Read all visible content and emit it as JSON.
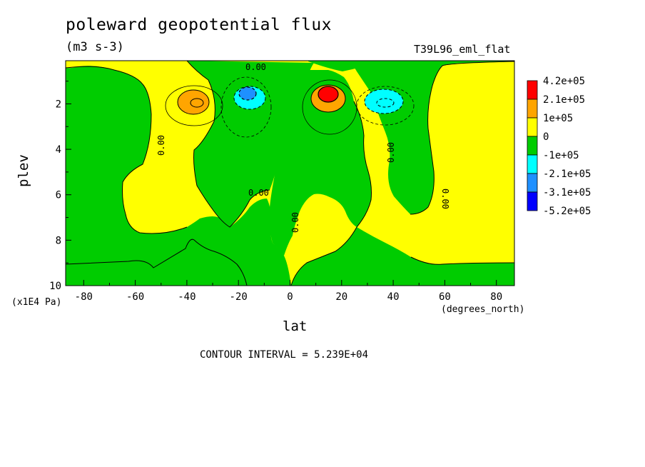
{
  "header": {
    "title": "poleward geopotential flux",
    "units": "(m3 s-3)",
    "run_name": "T39L96_eml_flat"
  },
  "footer": {
    "contour_interval": "CONTOUR INTERVAL = 5.239E+04"
  },
  "chart_data": {
    "type": "heatmap",
    "title": "poleward geopotential flux",
    "xlabel": "lat",
    "xunits": "(degrees_north)",
    "ylabel": "plev",
    "yunits": "(x1E4 Pa)",
    "xlim": [
      -87,
      87
    ],
    "ylim": [
      10,
      0.1
    ],
    "xticks": [
      -80,
      -60,
      -40,
      -20,
      0,
      20,
      40,
      60,
      80
    ],
    "yticks": [
      2,
      4,
      6,
      8,
      10
    ],
    "contour_labels": [
      "0.00",
      "0.00",
      "0.00",
      "0.00",
      "0.00",
      "0.00"
    ],
    "colorbar": {
      "labels": [
        "4.2e+05",
        "2.1e+05",
        "1e+05",
        "0",
        "-1e+05",
        "-2.1e+05",
        "-3.1e+05",
        "-5.2e+05"
      ],
      "colors": [
        "#ff0000",
        "#ffa500",
        "#ffff00",
        "#00cc00",
        "#00ffff",
        "#1e90ff",
        "#0000ff"
      ]
    },
    "features": [
      {
        "type": "max",
        "lat": -37,
        "plev": 2.0,
        "level": "2.1e+05"
      },
      {
        "type": "min",
        "lat": -16,
        "plev": 1.6,
        "level": "-3.1e+05"
      },
      {
        "type": "max",
        "lat": 15,
        "plev": 1.6,
        "level": "4.2e+05"
      },
      {
        "type": "min",
        "lat": 37,
        "plev": 1.9,
        "level": "-2.1e+05"
      }
    ]
  }
}
